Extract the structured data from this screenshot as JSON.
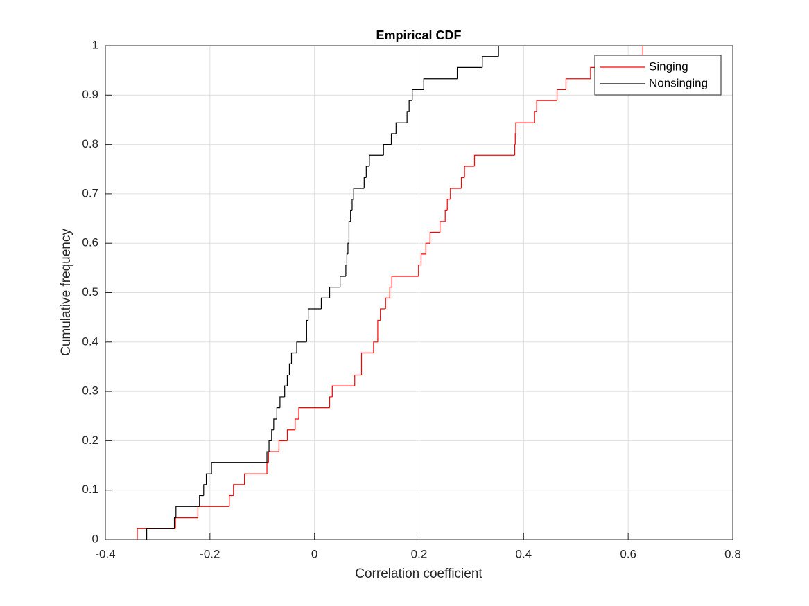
{
  "chart_data": {
    "type": "ecdf",
    "title": "Empirical CDF",
    "x_label": "Correlation coefficient",
    "y_label": "Cumulative frequency",
    "xlim": [
      -0.4,
      0.8
    ],
    "xticks": [
      -0.4,
      -0.2,
      0,
      0.2,
      0.4,
      0.6,
      0.8
    ],
    "ylim": [
      0,
      1
    ],
    "yticks": [
      0,
      0.1,
      0.2,
      0.3,
      0.4,
      0.5,
      0.6,
      0.7,
      0.8,
      0.9,
      1
    ],
    "grid": true,
    "legend_location": "northeast",
    "series": [
      {
        "name": "Singing",
        "color": "#ff0000",
        "x": [
          -0.339,
          -0.266,
          -0.223,
          -0.163,
          -0.155,
          -0.134,
          -0.091,
          -0.088,
          -0.068,
          -0.052,
          -0.037,
          -0.03,
          0.029,
          0.034,
          0.077,
          0.09,
          0.113,
          0.121,
          0.126,
          0.136,
          0.144,
          0.148,
          0.199,
          0.204,
          0.213,
          0.221,
          0.24,
          0.25,
          0.254,
          0.26,
          0.281,
          0.287,
          0.306,
          0.383,
          0.384,
          0.385,
          0.421,
          0.425,
          0.464,
          0.481,
          0.528,
          0.539,
          0.628
        ],
        "values": [
          0.022,
          0.044,
          0.067,
          0.089,
          0.111,
          0.133,
          0.156,
          0.178,
          0.2,
          0.222,
          0.244,
          0.267,
          0.289,
          0.311,
          0.333,
          0.378,
          0.4,
          0.444,
          0.467,
          0.489,
          0.511,
          0.533,
          0.556,
          0.578,
          0.6,
          0.622,
          0.644,
          0.667,
          0.689,
          0.711,
          0.733,
          0.756,
          0.778,
          0.8,
          0.822,
          0.844,
          0.867,
          0.889,
          0.911,
          0.933,
          0.956,
          0.978,
          1.0
        ]
      },
      {
        "name": "Nonsinging",
        "color": "#000000",
        "x": [
          -0.321,
          -0.268,
          -0.265,
          -0.22,
          -0.212,
          -0.207,
          -0.197,
          -0.091,
          -0.087,
          -0.082,
          -0.078,
          -0.072,
          -0.066,
          -0.057,
          -0.052,
          -0.048,
          -0.044,
          -0.034,
          -0.015,
          -0.012,
          0.013,
          0.029,
          0.049,
          0.06,
          0.062,
          0.064,
          0.066,
          0.069,
          0.072,
          0.075,
          0.095,
          0.099,
          0.105,
          0.132,
          0.147,
          0.156,
          0.177,
          0.181,
          0.187,
          0.209,
          0.273,
          0.321,
          0.352
        ],
        "values": [
          0.022,
          0.044,
          0.067,
          0.089,
          0.111,
          0.133,
          0.156,
          0.178,
          0.2,
          0.222,
          0.244,
          0.267,
          0.289,
          0.311,
          0.333,
          0.356,
          0.378,
          0.4,
          0.444,
          0.467,
          0.489,
          0.511,
          0.533,
          0.556,
          0.578,
          0.6,
          0.644,
          0.667,
          0.689,
          0.711,
          0.733,
          0.756,
          0.778,
          0.8,
          0.822,
          0.844,
          0.867,
          0.889,
          0.911,
          0.933,
          0.956,
          0.978,
          1.0
        ]
      }
    ]
  }
}
